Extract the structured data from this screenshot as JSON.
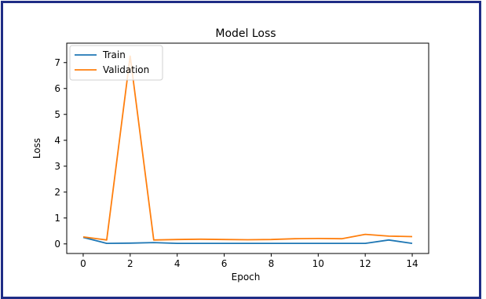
{
  "chart_data": {
    "type": "line",
    "title": "Model Loss",
    "xlabel": "Epoch",
    "ylabel": "Loss",
    "x": [
      0,
      1,
      2,
      3,
      4,
      5,
      6,
      7,
      8,
      9,
      10,
      11,
      12,
      13,
      14
    ],
    "series": [
      {
        "name": "Train",
        "color": "#1f77b4",
        "values": [
          0.25,
          0.02,
          0.03,
          0.05,
          0.02,
          0.02,
          0.02,
          0.02,
          0.02,
          0.02,
          0.02,
          0.02,
          0.02,
          0.15,
          0.02
        ]
      },
      {
        "name": "Validation",
        "color": "#ff7f0e",
        "values": [
          0.27,
          0.15,
          7.25,
          0.15,
          0.17,
          0.18,
          0.17,
          0.16,
          0.17,
          0.2,
          0.21,
          0.2,
          0.37,
          0.3,
          0.28
        ]
      }
    ],
    "xlim": [
      -0.7,
      14.7
    ],
    "ylim": [
      -0.37,
      7.75
    ],
    "xticks": [
      0,
      2,
      4,
      6,
      8,
      10,
      12,
      14
    ],
    "yticks": [
      0,
      1,
      2,
      3,
      4,
      5,
      6,
      7
    ],
    "grid": false,
    "legend_position": "top-left"
  }
}
